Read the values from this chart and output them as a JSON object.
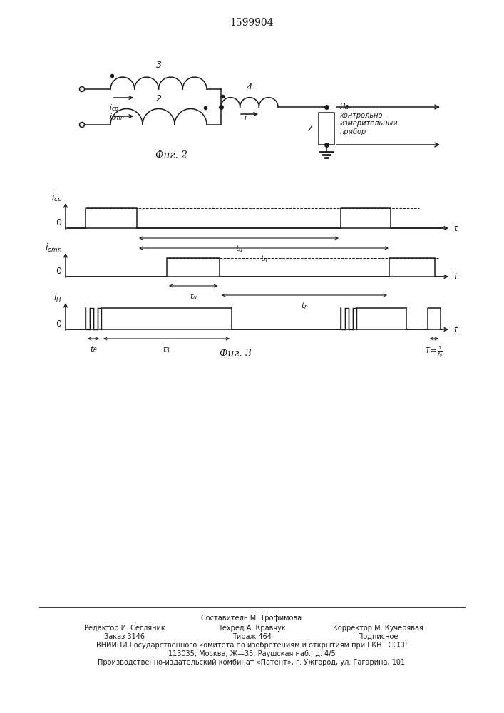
{
  "title_number": "1599904",
  "fig2_caption": "Фиг. 2",
  "fig3_caption": "Фиг. 3",
  "background_color": "#ffffff",
  "line_color": "#1a1a1a",
  "footer_lines": [
    "Составитель М. Трофимова",
    "Редактор И. Сегляник",
    "Техред А. Кравчук",
    "Корректор М. Кучерявая",
    "Заказ 3146",
    "Тираж 464",
    "Подписное",
    "ВНИИПИ Государственного комитета по изобретениям и открытиям при ГКНТ СССР",
    "113035, Москва, Ж—35, Раушская наб., д. 4/5",
    "Производственно-издательский комбинат «Патент», г. Ужгород, ул. Гагарина, 101"
  ]
}
